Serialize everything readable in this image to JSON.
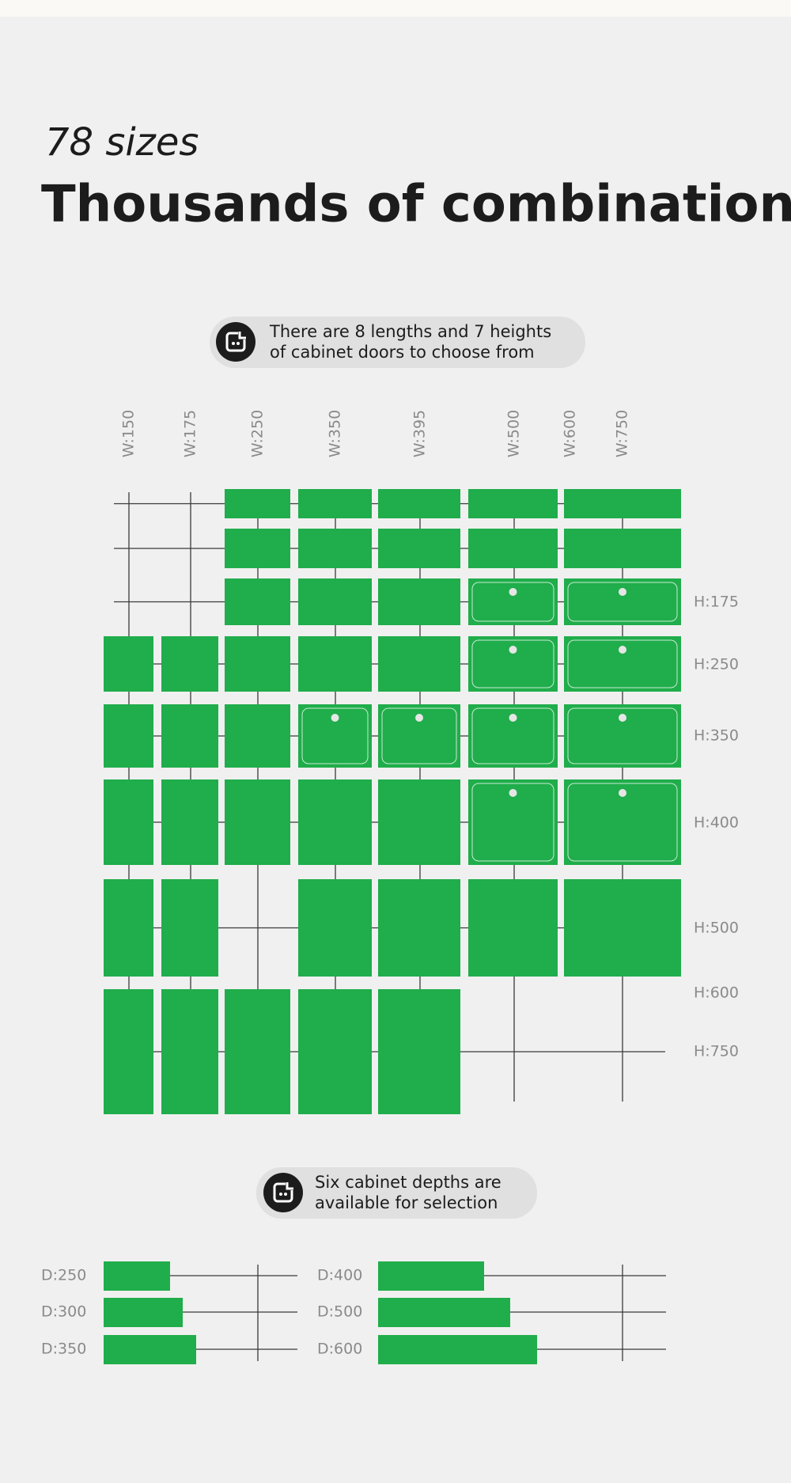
{
  "header": {
    "subtitle": "78 sizes",
    "title": "Thousands of combinations"
  },
  "note_doors": {
    "lines": [
      "There are 8 lengths and 7 heights",
      "of cabinet doors to choose from"
    ]
  },
  "widths": [
    "W:150",
    "W:175",
    "W:250",
    "W:350",
    "W:395",
    "W:500",
    "W:600",
    "W:750"
  ],
  "heights": [
    "H:175",
    "H:250",
    "H:350",
    "H:400",
    "H:500",
    "H:600",
    "H:750"
  ],
  "note_depths": {
    "lines": [
      "Six cabinet depths are",
      "available for selection"
    ]
  },
  "depths": [
    "D:250",
    "D:300",
    "D:350",
    "D:400",
    "D:500",
    "D:600"
  ]
}
